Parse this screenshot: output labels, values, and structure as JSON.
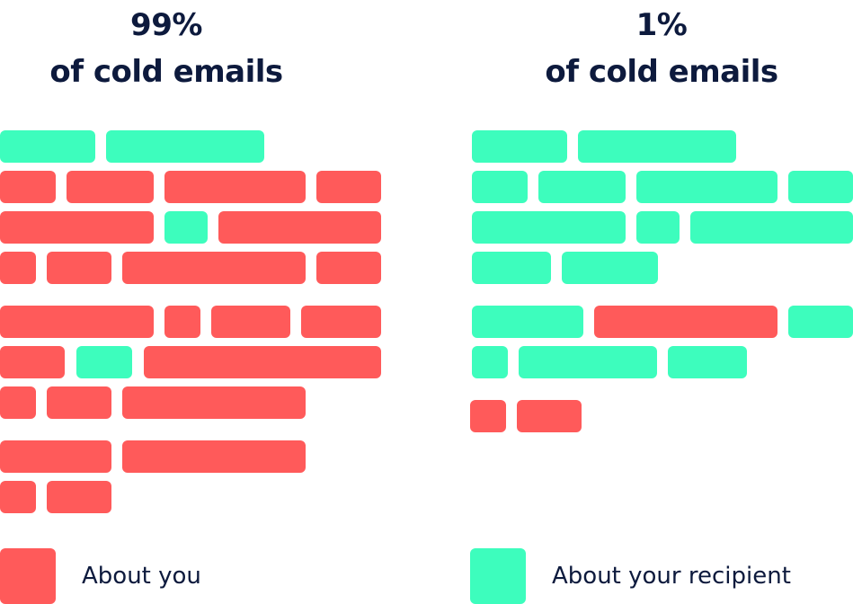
{
  "colors": {
    "about_you": "#ff5a5a",
    "about_recipient": "#3dfdbd",
    "text": "#0d1a3d"
  },
  "left": {
    "percent": "99%",
    "caption": "of cold emails"
  },
  "right": {
    "percent": "1%",
    "caption": "of cold emails"
  },
  "legend": {
    "about_you": "About you",
    "about_recipient": "About your recipient"
  }
}
